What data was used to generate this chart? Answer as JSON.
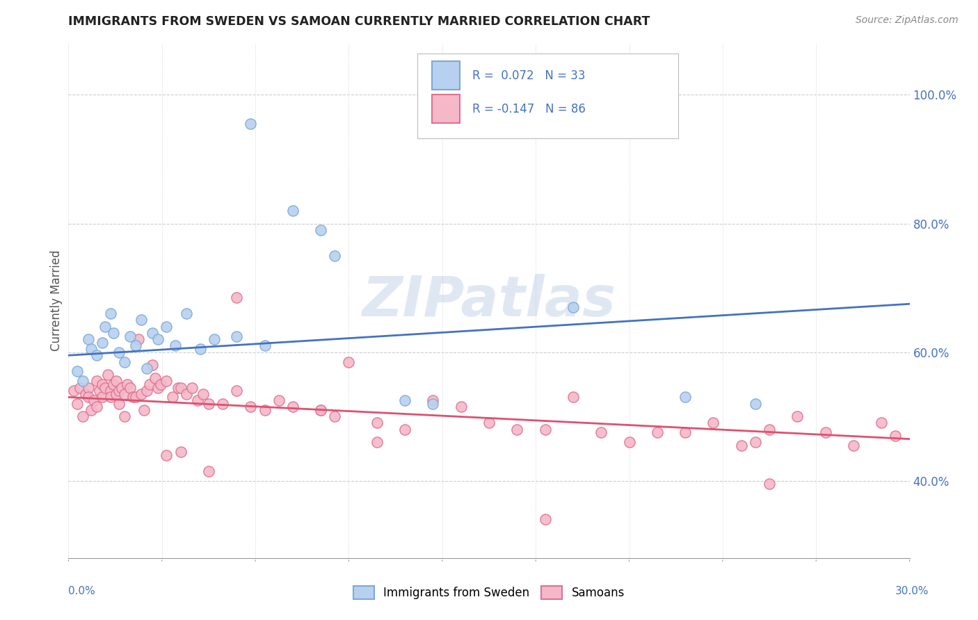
{
  "title": "IMMIGRANTS FROM SWEDEN VS SAMOAN CURRENTLY MARRIED CORRELATION CHART",
  "source": "Source: ZipAtlas.com",
  "ylabel": "Currently Married",
  "right_yticks": [
    "100.0%",
    "80.0%",
    "60.0%",
    "40.0%"
  ],
  "right_ytick_vals": [
    1.0,
    0.8,
    0.6,
    0.4
  ],
  "watermark": "ZIPatlas",
  "blue_color": "#7bafd4",
  "blue_fill": "#aec6e8",
  "pink_color": "#e07090",
  "pink_fill": "#f0a8b8",
  "trend_blue": "#4472c4",
  "trend_pink": "#e05070",
  "xmin": 0.0,
  "xmax": 0.3,
  "ymin": 0.28,
  "ymax": 1.08,
  "blue_trend_x": [
    0.0,
    0.3
  ],
  "blue_trend_y": [
    0.595,
    0.675
  ],
  "pink_trend_x": [
    0.0,
    0.3
  ],
  "pink_trend_y": [
    0.53,
    0.465
  ]
}
